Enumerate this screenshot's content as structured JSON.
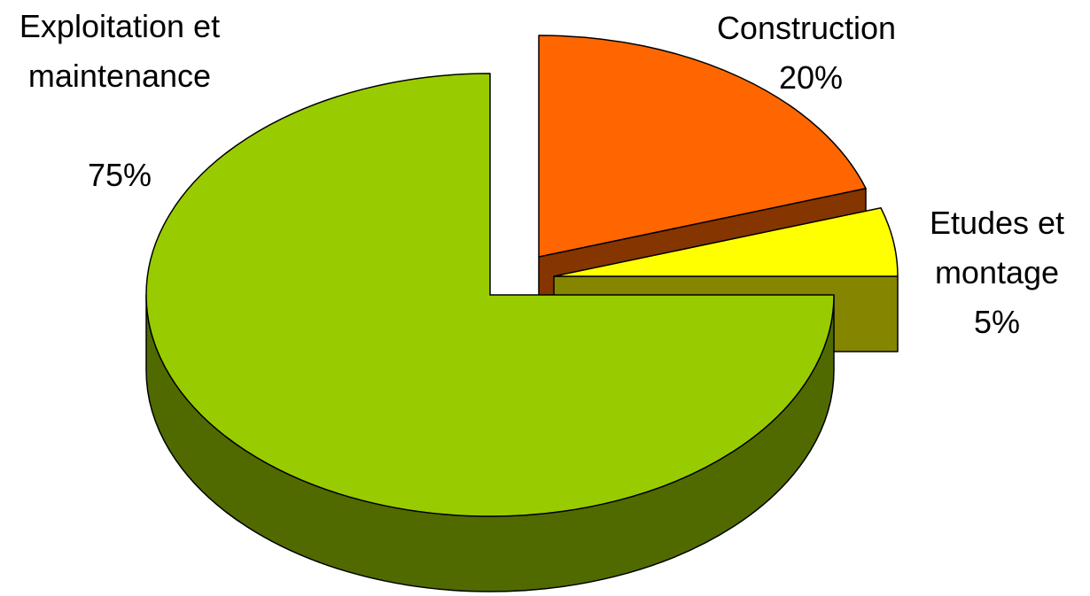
{
  "chart_data": {
    "type": "pie",
    "categories": [
      "Construction",
      "Etudes et montage",
      "Exploitation et maintenance"
    ],
    "values": [
      20,
      5,
      75
    ],
    "value_labels": [
      "20%",
      "5%",
      "75%"
    ],
    "colors": [
      "#ff6600",
      "#ffff00",
      "#99cc00"
    ]
  }
}
